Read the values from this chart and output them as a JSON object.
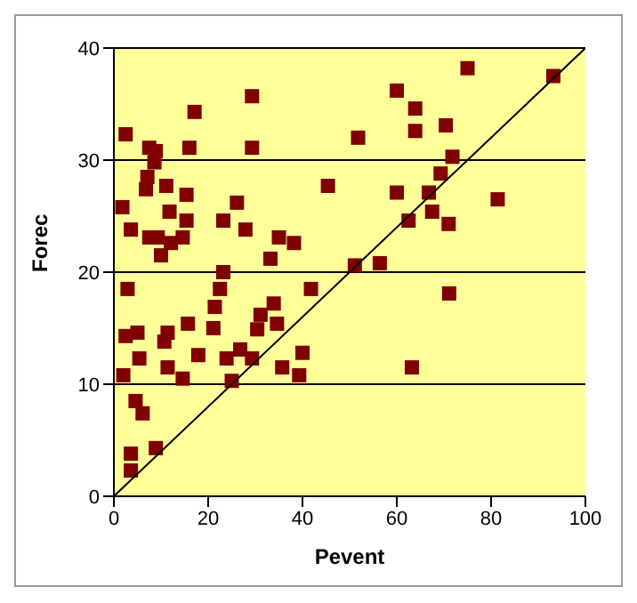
{
  "chart_data": {
    "type": "scatter",
    "xlabel": "Pevent",
    "ylabel": "Forec",
    "xlim": [
      0,
      100
    ],
    "ylim": [
      0,
      40
    ],
    "xticks": [
      0,
      20,
      40,
      60,
      80,
      100
    ],
    "yticks": [
      0,
      10,
      20,
      30,
      40
    ],
    "grid": "y",
    "marker": "square",
    "legend": false,
    "series": [
      {
        "type": "scatter",
        "color": "#800000",
        "x": [
          2.5,
          1.8,
          3.6,
          2.9,
          2.5,
          2,
          3.6,
          3.6,
          4.6,
          6.1,
          5,
          5.4,
          7.5,
          7.1,
          6.8,
          8.6,
          8.9,
          7.5,
          9.3,
          10,
          11.1,
          11.8,
          12.1,
          10.7,
          11.4,
          11.4,
          8.9,
          14.6,
          15.4,
          16,
          17.1,
          15.4,
          15.7,
          14.6,
          17.9,
          21.4,
          22.5,
          23.2,
          23.2,
          21.1,
          23.9,
          25,
          26.8,
          26.1,
          27.9,
          29.3,
          29.3,
          29.3,
          30.4,
          31.1,
          33.2,
          33.9,
          35,
          34.6,
          35.7,
          38.2,
          39.3,
          40,
          41.8,
          45.4,
          51.1,
          51.8,
          56.4,
          60,
          60,
          62.5,
          63.2,
          63.9,
          63.9,
          66.8,
          67.5,
          69.3,
          70.4,
          71,
          71.1,
          71.8,
          75,
          81.4,
          93.2
        ],
        "values": [
          32.3,
          25.8,
          23.8,
          18.5,
          14.3,
          10.8,
          3.8,
          2.3,
          8.5,
          7.4,
          14.6,
          12.3,
          31.1,
          28.5,
          27.4,
          29.8,
          30.8,
          23.1,
          23.1,
          21.5,
          27.7,
          25.4,
          22.6,
          13.8,
          14.6,
          11.5,
          4.3,
          23.1,
          26.9,
          31.1,
          34.3,
          24.6,
          15.4,
          10.5,
          12.6,
          16.9,
          18.5,
          20,
          24.6,
          15,
          12.3,
          10.3,
          13.1,
          26.2,
          23.8,
          12.3,
          35.7,
          31.1,
          14.9,
          16.2,
          21.2,
          17.2,
          23.1,
          15.4,
          11.5,
          22.6,
          10.8,
          12.8,
          18.5,
          27.7,
          20.6,
          32,
          20.8,
          36.2,
          27.1,
          24.6,
          11.5,
          34.6,
          32.6,
          27.1,
          25.4,
          28.8,
          33.1,
          24.3,
          18.1,
          30.3,
          38.2,
          26.5,
          37.5
        ]
      },
      {
        "type": "line",
        "color": "#000000",
        "x": [
          0,
          100
        ],
        "values": [
          0,
          40
        ],
        "marker": "none"
      }
    ]
  }
}
